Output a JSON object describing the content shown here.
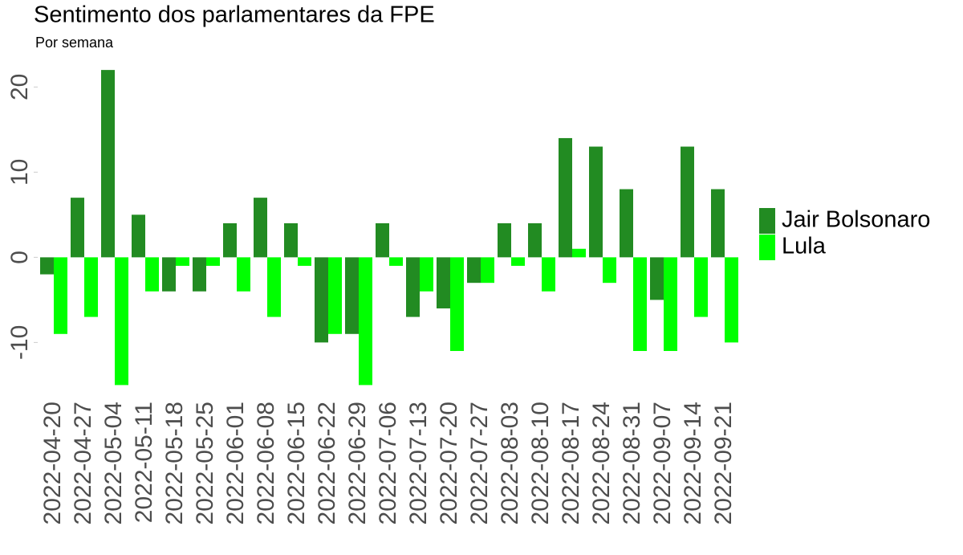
{
  "chart_data": {
    "type": "bar",
    "title": "Sentimento dos parlamentares da FPE",
    "subtitle": "Por semana",
    "categories": [
      "2022-04-20",
      "2022-04-27",
      "2022-05-04",
      "2022-05-11",
      "2022-05-18",
      "2022-05-25",
      "2022-06-01",
      "2022-06-08",
      "2022-06-15",
      "2022-06-22",
      "2022-06-29",
      "2022-07-06",
      "2022-07-13",
      "2022-07-20",
      "2022-07-27",
      "2022-08-03",
      "2022-08-10",
      "2022-08-17",
      "2022-08-24",
      "2022-08-31",
      "2022-09-07",
      "2022-09-14",
      "2022-09-21"
    ],
    "series": [
      {
        "name": "Jair Bolsonaro",
        "color": "#228b22",
        "values": [
          -2,
          7,
          22,
          5,
          -4,
          -4,
          4,
          7,
          4,
          -10,
          -9,
          4,
          -7,
          -6,
          -3,
          4,
          4,
          14,
          13,
          8,
          -5,
          13,
          8
        ]
      },
      {
        "name": "Lula",
        "color": "#00ff00",
        "values": [
          -9,
          -7,
          -15,
          -4,
          -1,
          -1,
          -4,
          -7,
          -1,
          -9,
          -15,
          -1,
          -4,
          -11,
          -3,
          -1,
          -4,
          1,
          -3,
          -11,
          -11,
          -7,
          -10
        ]
      }
    ],
    "ylim": [
      -16,
      22.2
    ],
    "yticks": [
      -10,
      0,
      10,
      20
    ],
    "legend": "right"
  }
}
